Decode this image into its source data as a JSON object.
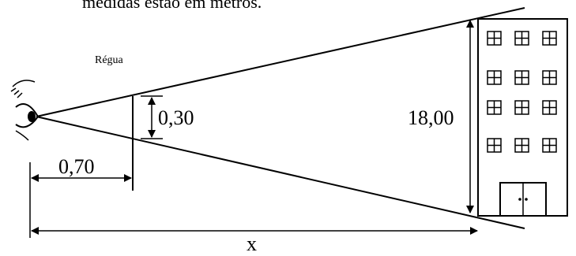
{
  "caption_fragment": "medidas estão em metros.",
  "labels": {
    "ruler": "Régua",
    "ruler_height": "0,30",
    "ruler_distance": "0,70",
    "building_height": "18,00",
    "total_distance": "x"
  },
  "icons": {
    "eye": "eye-icon",
    "building": "building-icon"
  }
}
